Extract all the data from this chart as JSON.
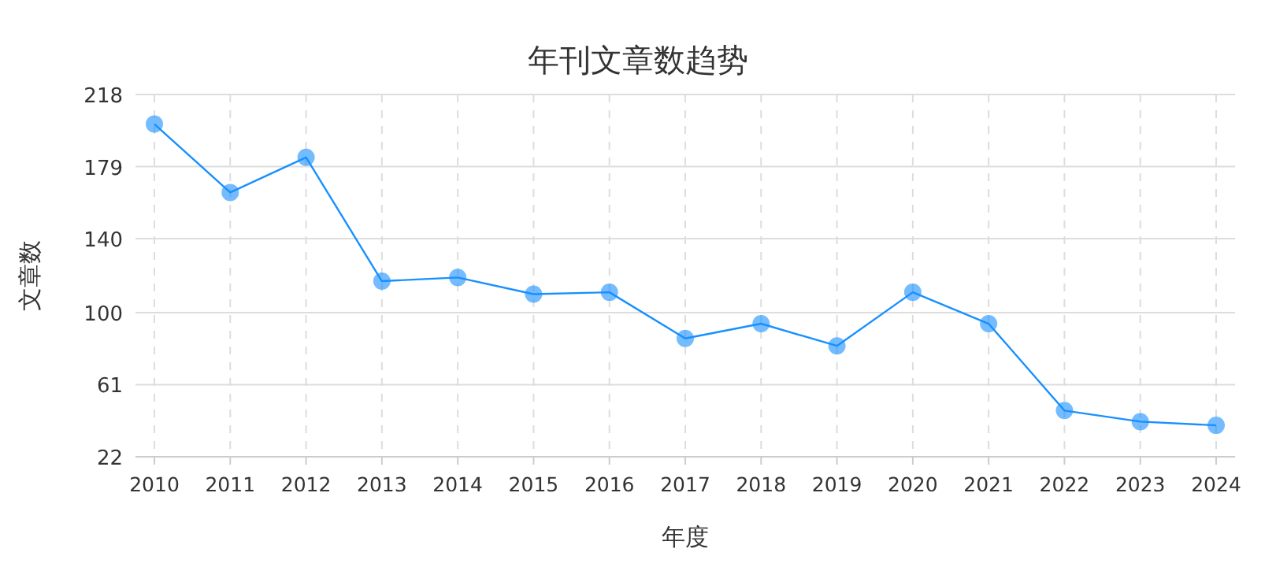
{
  "chart_data": {
    "type": "line",
    "title": "年刊文章数趋势",
    "xlabel": "年度",
    "ylabel": "文章数",
    "categories": [
      "2010",
      "2011",
      "2012",
      "2013",
      "2014",
      "2015",
      "2016",
      "2017",
      "2018",
      "2019",
      "2020",
      "2021",
      "2022",
      "2023",
      "2024"
    ],
    "series": [
      {
        "color": "#1890ff",
        "values": [
          202,
          165,
          184,
          117,
          119,
          110,
          111,
          86,
          94,
          82,
          111,
          94,
          47,
          41,
          39
        ]
      }
    ],
    "ylim": [
      22,
      218
    ],
    "yticks": [
      22,
      61,
      100,
      140,
      179,
      218
    ],
    "grid": true,
    "marker": "circle"
  }
}
